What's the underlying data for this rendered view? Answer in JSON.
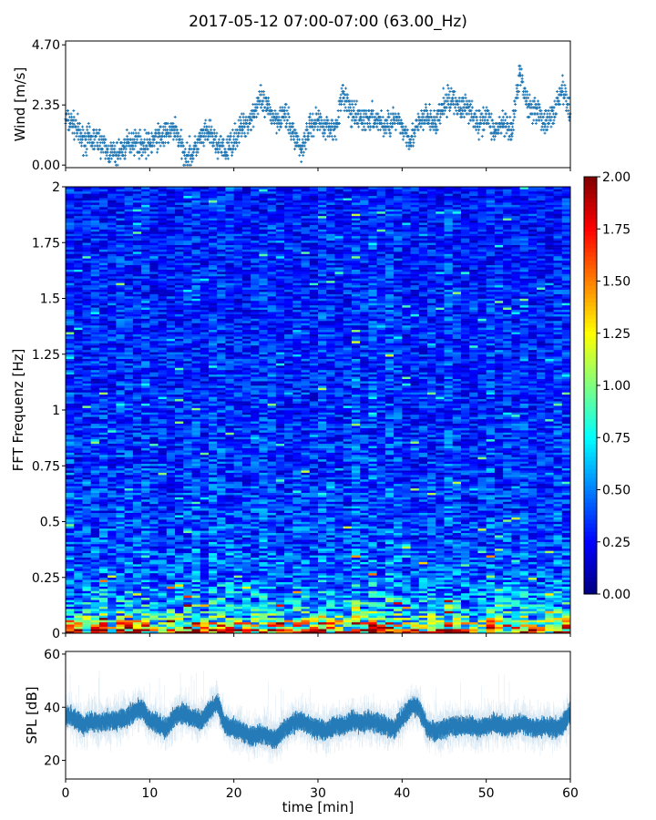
{
  "title": "2017-05-12 07:00-07:00 (63.00_Hz)",
  "chart_data": [
    {
      "type": "scatter",
      "ylabel": "Wind [m/s]",
      "xlim": [
        0,
        60
      ],
      "ylim": [
        -0.1,
        4.85
      ],
      "yticks": [
        0.0,
        2.35,
        4.7
      ],
      "ytick_labels": [
        "0.00",
        "2.35",
        "4.70"
      ],
      "marker": "+",
      "color": "#1f77b4",
      "x": [
        0,
        1,
        2,
        3,
        4,
        5,
        6,
        7,
        8,
        9,
        10,
        11,
        12,
        13,
        14,
        15,
        16,
        17,
        18,
        19,
        20,
        21,
        22,
        23,
        24,
        25,
        26,
        27,
        28,
        29,
        30,
        31,
        32,
        33,
        34,
        35,
        36,
        37,
        38,
        39,
        40,
        41,
        42,
        43,
        44,
        45,
        46,
        47,
        48,
        49,
        50,
        51,
        52,
        53,
        54,
        55,
        56,
        57,
        58,
        59,
        60
      ],
      "y": [
        1.8,
        1.6,
        1.0,
        1.0,
        1.0,
        0.5,
        0.4,
        0.7,
        1.0,
        0.8,
        0.8,
        1.1,
        1.2,
        1.5,
        0.5,
        0.4,
        1.0,
        1.3,
        0.8,
        0.5,
        1.0,
        1.5,
        1.8,
        2.5,
        2.2,
        1.8,
        2.0,
        1.3,
        0.6,
        1.5,
        1.8,
        1.5,
        1.4,
        2.8,
        2.0,
        1.8,
        1.8,
        1.8,
        1.5,
        1.8,
        1.5,
        1.0,
        1.6,
        1.9,
        1.6,
        2.4,
        2.6,
        2.2,
        2.3,
        1.5,
        2.0,
        1.3,
        1.6,
        1.2,
        3.6,
        2.3,
        2.2,
        1.6,
        2.0,
        3.0,
        2.0
      ]
    },
    {
      "type": "heatmap",
      "ylabel": "FFT Frequenz [Hz]",
      "xlim": [
        0,
        60
      ],
      "ylim": [
        0,
        2
      ],
      "yticks": [
        0,
        0.25,
        0.5,
        0.75,
        1,
        1.25,
        1.5,
        1.75,
        2
      ],
      "ytick_labels": [
        "0",
        "0.25",
        "0.5",
        "0.75",
        "1",
        "1.25",
        "1.5",
        "1.75",
        "2"
      ],
      "colormap": "jet",
      "clim": [
        0,
        2
      ],
      "colorbar_ticks": [
        "0.00",
        "0.25",
        "0.50",
        "0.75",
        "1.00",
        "1.25",
        "1.50",
        "1.75",
        "2.00"
      ],
      "mean_by_frequency": {
        "f": [
          0,
          0.05,
          0.1,
          0.25,
          0.5,
          1.0,
          2.0
        ],
        "value": [
          1.6,
          1.0,
          0.65,
          0.45,
          0.38,
          0.33,
          0.3
        ]
      }
    },
    {
      "type": "area",
      "ylabel": "SPL [dB]",
      "xlabel": "time [min]",
      "xlim": [
        0,
        60
      ],
      "ylim": [
        13,
        61
      ],
      "xticks": [
        "0",
        "10",
        "20",
        "30",
        "40",
        "50",
        "60"
      ],
      "yticks": [
        "20",
        "40",
        "60"
      ],
      "color": "#1f77b4",
      "x": [
        0,
        1,
        2,
        3,
        4,
        5,
        6,
        7,
        8,
        9,
        10,
        11,
        12,
        13,
        14,
        15,
        16,
        17,
        18,
        19,
        20,
        21,
        22,
        23,
        24,
        25,
        26,
        27,
        28,
        29,
        30,
        31,
        32,
        33,
        34,
        35,
        36,
        37,
        38,
        39,
        40,
        41,
        42,
        43,
        44,
        45,
        46,
        47,
        48,
        49,
        50,
        51,
        52,
        53,
        54,
        55,
        56,
        57,
        58,
        59,
        60
      ],
      "y": [
        37,
        36,
        33,
        35,
        34,
        35,
        35,
        36,
        38,
        40,
        35,
        34,
        32,
        37,
        38,
        36,
        35,
        38,
        42,
        33,
        32,
        31,
        29,
        30,
        29,
        28,
        32,
        34,
        35,
        33,
        32,
        31,
        33,
        33,
        35,
        34,
        35,
        34,
        33,
        32,
        36,
        40,
        40,
        32,
        31,
        32,
        33,
        33,
        33,
        32,
        33,
        34,
        33,
        33,
        34,
        33,
        32,
        33,
        32,
        33,
        38
      ]
    }
  ]
}
